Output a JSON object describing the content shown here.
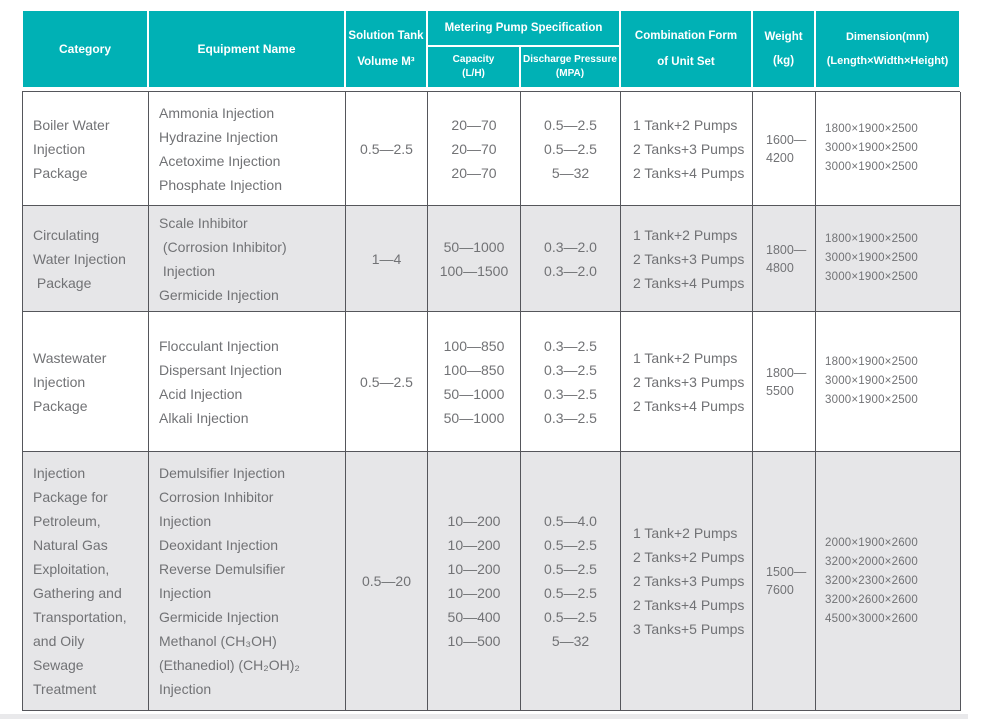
{
  "colors": {
    "header_bg": "#00b1b5",
    "row_alt_bg": "#e6e6e8",
    "border": "#55565b",
    "body_text": "#717275",
    "header_text": "#ffffff"
  },
  "table": {
    "header": {
      "category": "Category",
      "equipment": "Equipment Name",
      "solution_tank": [
        "Solution Tank",
        "Volume M³"
      ],
      "metering": "Metering Pump Specification",
      "capacity": [
        "Capacity",
        "(L/H)"
      ],
      "discharge": [
        "Discharge Pressure",
        "(MPA)"
      ],
      "combination": [
        "Combination Form",
        "of Unit Set"
      ],
      "weight": [
        "Weight",
        "(kg)"
      ],
      "dimension": [
        "Dimension(mm)",
        "(Length×Width×Height)"
      ]
    },
    "rows": [
      {
        "category": [
          "Boiler Water",
          "Injection",
          "Package"
        ],
        "equipment": [
          "Ammonia Injection",
          "Hydrazine Injection",
          "Acetoxime Injection",
          "Phosphate Injection"
        ],
        "tank": "0.5—2.5",
        "capacity": [
          "20—70",
          "20—70",
          "20—70"
        ],
        "discharge": [
          "0.5—2.5",
          "0.5—2.5",
          "5—32"
        ],
        "combination": [
          "1 Tank+2 Pumps",
          "2 Tanks+3 Pumps",
          "2 Tanks+4 Pumps"
        ],
        "weight": [
          "1600—",
          "4200"
        ],
        "dimension": [
          "1800×1900×2500",
          "3000×1900×2500",
          "3000×1900×2500"
        ]
      },
      {
        "category": [
          "Circulating",
          "Water Injection",
          " Package"
        ],
        "equipment": [
          "Scale Inhibitor",
          " (Corrosion Inhibitor)",
          " Injection",
          "Germicide Injection"
        ],
        "tank": "1—4",
        "capacity": [
          "50—1000",
          "100—1500"
        ],
        "discharge": [
          "0.3—2.0",
          "0.3—2.0"
        ],
        "combination": [
          "1 Tank+2 Pumps",
          "2 Tanks+3 Pumps",
          "2 Tanks+4 Pumps"
        ],
        "weight": [
          "1800—",
          "4800"
        ],
        "dimension": [
          "1800×1900×2500",
          "3000×1900×2500",
          "3000×1900×2500"
        ]
      },
      {
        "category": [
          "Wastewater",
          "Injection",
          "Package"
        ],
        "equipment": [
          "Flocculant Injection",
          "Dispersant Injection",
          "Acid Injection",
          "Alkali Injection"
        ],
        "tank": "0.5—2.5",
        "capacity": [
          "100—850",
          "100—850",
          "50—1000",
          "50—1000"
        ],
        "discharge": [
          "0.3—2.5",
          "0.3—2.5",
          "0.3—2.5",
          "0.3—2.5"
        ],
        "combination": [
          "1 Tank+2 Pumps",
          "2 Tanks+3 Pumps",
          "2 Tanks+4 Pumps"
        ],
        "weight": [
          "1800—",
          "5500"
        ],
        "dimension": [
          "1800×1900×2500",
          "3000×1900×2500",
          "3000×1900×2500"
        ]
      },
      {
        "category": [
          "Injection",
          "Package for",
          "Petroleum,",
          "Natural Gas",
          "Exploitation,",
          "Gathering and",
          "Transportation,",
          "and Oily",
          "Sewage",
          "Treatment"
        ],
        "equipment": [
          "Demulsifier Injection",
          "Corrosion Inhibitor",
          "Injection",
          "Deoxidant Injection",
          "Reverse Demulsifier",
          "Injection",
          "Germicide Injection",
          "Methanol (CH₃OH)",
          "(Ethanediol) (CH₂OH)₂",
          "Injection"
        ],
        "tank": "0.5—20",
        "capacity": [
          "10—200",
          "10—200",
          "10—200",
          "10—200",
          "50—400",
          "10—500"
        ],
        "discharge": [
          "0.5—4.0",
          "0.5—2.5",
          "0.5—2.5",
          "0.5—2.5",
          "0.5—2.5",
          "5—32"
        ],
        "combination": [
          "1 Tank+2 Pumps",
          "2 Tanks+2 Pumps",
          "2 Tanks+3 Pumps",
          "2 Tanks+4 Pumps",
          "3 Tanks+5 Pumps"
        ],
        "weight": [
          "1500—",
          "7600"
        ],
        "dimension": [
          "2000×1900×2600",
          "3200×2000×2600",
          "3200×2300×2600",
          "3200×2600×2600",
          "4500×3000×2600"
        ]
      }
    ]
  }
}
